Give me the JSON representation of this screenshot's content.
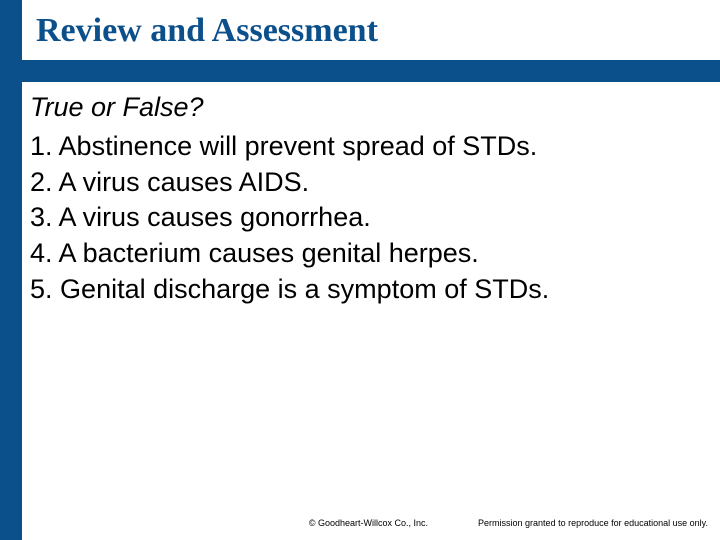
{
  "colors": {
    "sidebar": "#0b4f8b",
    "header_underline": "#0b4f8b",
    "title": "#0b4f8b",
    "text": "#000000",
    "background": "#ffffff",
    "footer": "#000000"
  },
  "header": {
    "title": "Review and Assessment"
  },
  "body": {
    "prompt": "True or False?",
    "items": [
      {
        "n": "1.",
        "text": "Abstinence will prevent spread of STDs."
      },
      {
        "n": "2.",
        "text": "A virus causes AIDS."
      },
      {
        "n": "3.",
        "text": "A virus causes gonorrhea."
      },
      {
        "n": "4.",
        "text": "A bacterium causes genital herpes."
      },
      {
        "n": "5.",
        "text": "Genital discharge is a symptom of STDs."
      }
    ]
  },
  "footer": {
    "copyright": "© Goodheart-Willcox Co., Inc.",
    "permission": "Permission granted to reproduce for educational use only."
  }
}
